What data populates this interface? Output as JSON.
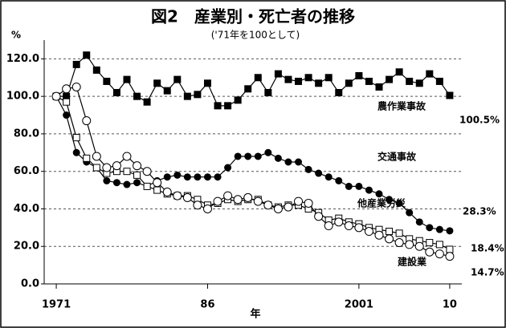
{
  "chart_data": {
    "type": "line",
    "title": "図2　産業別・死亡者の推移",
    "subtitle": "('71年を100として)",
    "y_unit": "%",
    "xlabel": "年",
    "x": [
      1971,
      1972,
      1973,
      1974,
      1975,
      1976,
      1977,
      1978,
      1979,
      1980,
      1981,
      1982,
      1983,
      1984,
      1985,
      1986,
      1987,
      1988,
      1989,
      1990,
      1991,
      1992,
      1993,
      1994,
      1995,
      1996,
      1997,
      1998,
      1999,
      2000,
      2001,
      2002,
      2003,
      2004,
      2005,
      2006,
      2007,
      2008,
      2009,
      2010
    ],
    "xlim": [
      1969.8,
      2011.2
    ],
    "xticks": [
      1971,
      {
        "value": 1986,
        "label": "86"
      },
      2001,
      {
        "value": 2010,
        "label": "10"
      }
    ],
    "ylim": [
      0,
      130
    ],
    "yticks": [
      {
        "value": 0,
        "label": "0.0"
      },
      {
        "value": 20,
        "label": "20.0"
      },
      {
        "value": 40,
        "label": "40.0"
      },
      {
        "value": 60,
        "label": "60.0"
      },
      {
        "value": 80,
        "label": "80.0"
      },
      {
        "value": 100,
        "label": "100.0"
      },
      {
        "value": 120,
        "label": "120.0"
      }
    ],
    "grid": true,
    "series": [
      {
        "name": "農作業事故",
        "color": "#000000",
        "marker": "filled-square",
        "end_label": "100.5%",
        "values": [
          100,
          100,
          117,
          122,
          114,
          108,
          102,
          109,
          100,
          97,
          107,
          103,
          109,
          100,
          101,
          107,
          95,
          95,
          98,
          104,
          110,
          102,
          112,
          109,
          108,
          110,
          107,
          110,
          102,
          107,
          111,
          108,
          105,
          109,
          113,
          108,
          107,
          112,
          108,
          100.5
        ]
      },
      {
        "name": "交通事故",
        "color": "#000000",
        "marker": "filled-circle",
        "end_label": "28.3%",
        "values": [
          100,
          90,
          70,
          65,
          62,
          55,
          54,
          53,
          54,
          52,
          55,
          57,
          58,
          57,
          57,
          57,
          57,
          62,
          68,
          68,
          68,
          70,
          67,
          65,
          65,
          61,
          59,
          57,
          55,
          52,
          52,
          50,
          48,
          45,
          43,
          38,
          33,
          30,
          29,
          28.3
        ]
      },
      {
        "name": "他産業労災",
        "color": "#000000",
        "marker": "open-square",
        "end_label": "18.4%",
        "values": [
          100,
          97,
          78,
          67,
          62,
          59,
          60,
          60,
          58,
          52,
          50,
          48,
          47,
          47,
          45,
          42,
          43,
          45,
          44,
          45,
          45,
          42,
          41,
          42,
          42,
          40,
          38,
          34,
          35,
          33,
          32,
          30,
          29,
          28,
          27,
          24,
          23,
          22,
          21,
          18.4
        ]
      },
      {
        "name": "建設業",
        "color": "#000000",
        "marker": "open-circle",
        "end_label": "14.7%",
        "values": [
          100,
          104,
          105,
          87,
          68,
          62,
          63,
          68,
          63,
          60,
          54,
          49,
          47,
          46,
          42,
          40,
          44,
          47,
          45,
          46,
          44,
          42,
          40,
          41,
          44,
          43,
          36,
          31,
          33,
          31,
          30,
          28,
          26,
          24,
          22,
          21,
          20,
          17,
          16,
          14.7
        ]
      }
    ]
  }
}
